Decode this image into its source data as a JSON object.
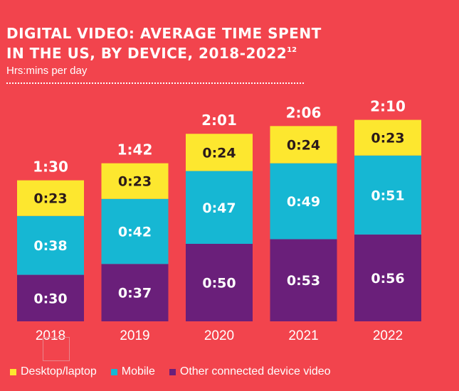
{
  "chart_data": {
    "type": "stacked-bar",
    "title_line1": "DIGITAL VIDEO: AVERAGE TIME SPENT",
    "title_line2": "IN THE US, BY DEVICE, 2018-2022",
    "title_footnote": "12",
    "subtitle": "Hrs:mins per day",
    "categories": [
      "2018",
      "2019",
      "2020",
      "2021",
      "2022"
    ],
    "totals": [
      "1:30",
      "1:42",
      "2:01",
      "2:06",
      "2:10"
    ],
    "ylim_minutes": [
      0,
      140
    ],
    "series": [
      {
        "name": "Other connected device video",
        "color": "#6a1f7a",
        "text_color": "#ffffff",
        "values_minutes": [
          30,
          37,
          50,
          53,
          56
        ],
        "labels": [
          "0:30",
          "0:37",
          "0:50",
          "0:53",
          "0:56"
        ]
      },
      {
        "name": "Mobile",
        "color": "#16b7d3",
        "text_color": "#ffffff",
        "values_minutes": [
          38,
          42,
          47,
          49,
          51
        ],
        "labels": [
          "0:38",
          "0:42",
          "0:47",
          "0:49",
          "0:51"
        ]
      },
      {
        "name": "Desktop/laptop",
        "color": "#fde72f",
        "text_color": "#2b1a1a",
        "values_minutes": [
          23,
          23,
          24,
          24,
          23
        ],
        "labels": [
          "0:23",
          "0:23",
          "0:24",
          "0:24",
          "0:23"
        ]
      }
    ],
    "legend": [
      {
        "name": "Desktop/laptop",
        "color": "#fde72f"
      },
      {
        "name": "Mobile",
        "color": "#16b7d3"
      },
      {
        "name": "Other connected device video",
        "color": "#6a1f7a"
      }
    ]
  }
}
